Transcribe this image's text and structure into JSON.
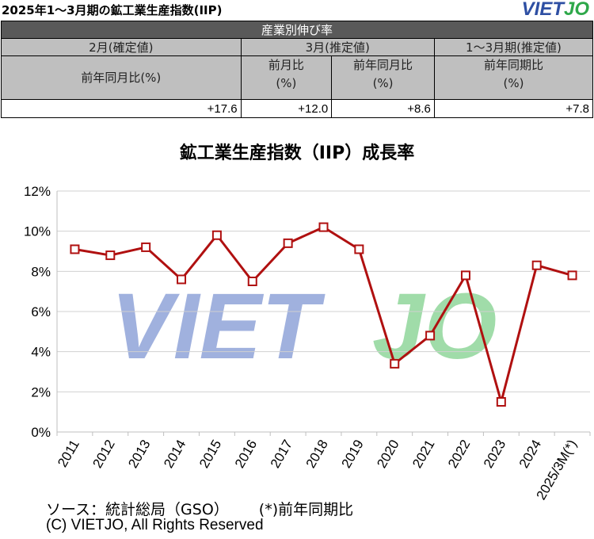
{
  "header": {
    "title": "2025年1～3月期の鉱工業生産指数(IIP)",
    "logo_viet": "VIET",
    "logo_jo": "JO"
  },
  "table": {
    "group_header": "産業別伸び率",
    "col_groups": [
      "2月(確定値)",
      "3月(推定値)",
      "1～3月期(推定値)"
    ],
    "sub_headers": {
      "feb_yoy": "前年同月比(%)",
      "mar_mom_line1": "前月比",
      "mar_mom_line2": "(%)",
      "mar_yoy_line1": "前年同月比",
      "mar_yoy_line2": "(%)",
      "q_yoy_line1": "前年同期比",
      "q_yoy_line2": "(%)"
    },
    "values": [
      "+17.6",
      "+12.0",
      "+8.6",
      "+7.8"
    ]
  },
  "chart_data": {
    "type": "line",
    "title": "鉱工業生産指数（IIP）成長率",
    "categories": [
      "2011",
      "2012",
      "2013",
      "2014",
      "2015",
      "2016",
      "2017",
      "2018",
      "2019",
      "2020",
      "2021",
      "2022",
      "2023",
      "2024",
      "2025/3M(*)"
    ],
    "series": [
      {
        "values": [
          9.1,
          8.8,
          9.2,
          7.6,
          9.8,
          7.5,
          9.4,
          10.2,
          9.1,
          3.4,
          4.8,
          7.8,
          1.5,
          8.3,
          7.8
        ]
      }
    ],
    "ylim": [
      0,
      12
    ],
    "y_ticks": [
      "0%",
      "2%",
      "4%",
      "6%",
      "8%",
      "10%",
      "12%"
    ],
    "y_tick_values": [
      0,
      2,
      4,
      6,
      8,
      10,
      12
    ],
    "grid": "horizontal",
    "colors": {
      "line": "#b01010",
      "marker_fill": "#ffffff",
      "grid": "#d0d0d0",
      "watermark_viet": "#8fa3d8",
      "watermark_jo": "#8fd69a"
    },
    "watermark": {
      "viet": "VIET",
      "jo": "JO"
    }
  },
  "footer": {
    "source": "ソース：統計総局（GSO）",
    "note": "(*)前年同期比",
    "copyright": "(C) VIETJO, All Rights Reserved"
  }
}
